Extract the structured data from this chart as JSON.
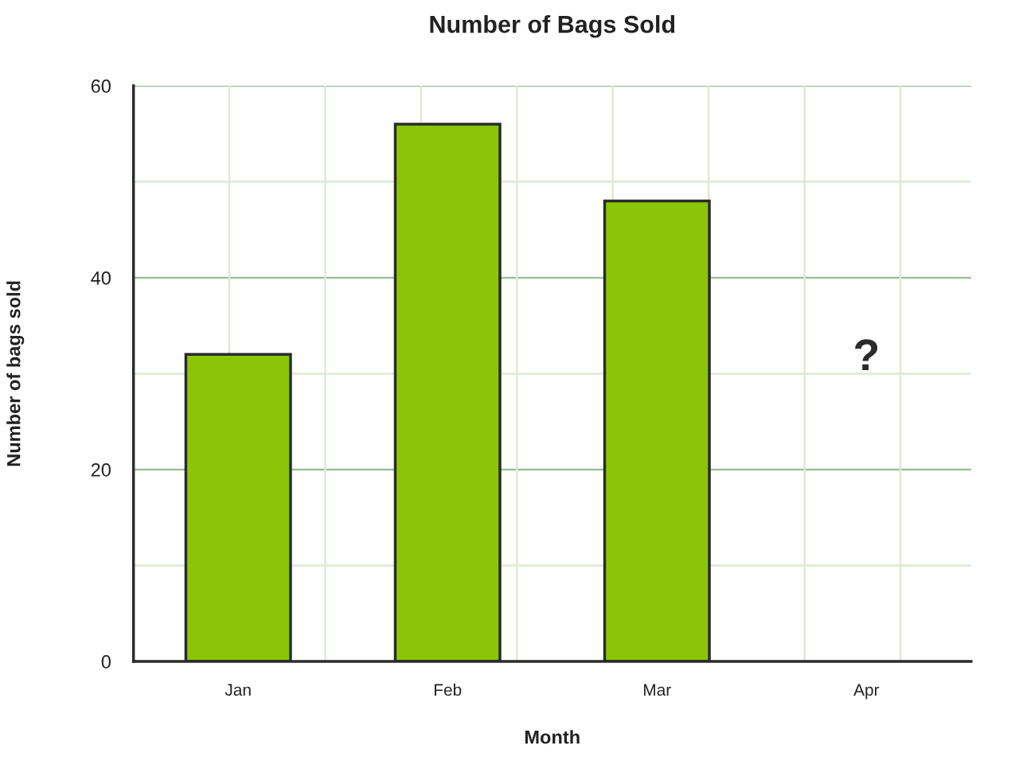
{
  "chart_data": {
    "type": "bar",
    "title": "Number of Bags Sold",
    "xlabel": "Month",
    "ylabel": "Number of bags sold",
    "categories": [
      "Jan",
      "Feb",
      "Mar",
      "Apr"
    ],
    "series": [
      {
        "color": "#8ac607",
        "values": [
          32,
          56,
          48,
          null
        ]
      }
    ],
    "ylim": [
      0,
      60
    ],
    "yticks": [
      0,
      {
        "value": 10,
        "label": null
      },
      20,
      {
        "value": 30,
        "label": null
      },
      40,
      {
        "value": 50,
        "label": null
      },
      60
    ],
    "grid": true,
    "legend": false,
    "annotations": [
      "?"
    ]
  }
}
